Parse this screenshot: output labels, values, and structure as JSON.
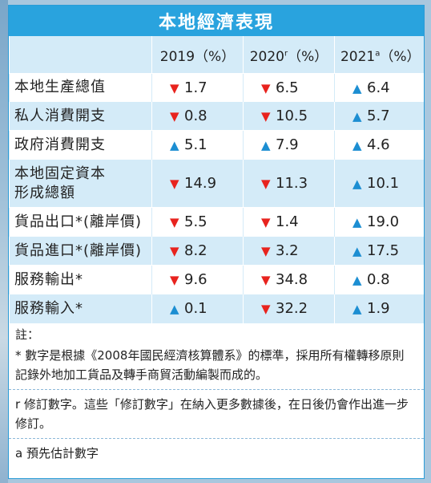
{
  "title": "本地經濟表現",
  "headers": {
    "col0": "",
    "col1": "2019（%）",
    "col2_main": "2020",
    "col2_sup": "r",
    "col2_rest": "（%）",
    "col3_main": "2021",
    "col3_sup": "a",
    "col3_rest": "（%）"
  },
  "rows": [
    {
      "label": "本地生產總值",
      "v": [
        {
          "dir": "down",
          "val": "1.7"
        },
        {
          "dir": "down",
          "val": "6.5"
        },
        {
          "dir": "up",
          "val": "6.4"
        }
      ]
    },
    {
      "label": "私人消費開支",
      "v": [
        {
          "dir": "down",
          "val": "0.8"
        },
        {
          "dir": "down",
          "val": "10.5"
        },
        {
          "dir": "up",
          "val": "5.7"
        }
      ]
    },
    {
      "label": "政府消費開支",
      "v": [
        {
          "dir": "up",
          "val": "5.1"
        },
        {
          "dir": "up",
          "val": "7.9"
        },
        {
          "dir": "up",
          "val": "4.6"
        }
      ]
    },
    {
      "label": "本地固定資本\n形成總額",
      "v": [
        {
          "dir": "down",
          "val": "14.9"
        },
        {
          "dir": "down",
          "val": "11.3"
        },
        {
          "dir": "up",
          "val": "10.1"
        }
      ]
    },
    {
      "label": "貨品出口*(離岸價)",
      "v": [
        {
          "dir": "down",
          "val": "5.5"
        },
        {
          "dir": "down",
          "val": "1.4"
        },
        {
          "dir": "up",
          "val": "19.0"
        }
      ]
    },
    {
      "label": "貨品進口*(離岸價)",
      "v": [
        {
          "dir": "down",
          "val": "8.2"
        },
        {
          "dir": "down",
          "val": "3.2"
        },
        {
          "dir": "up",
          "val": "17.5"
        }
      ]
    },
    {
      "label": "服務輸出*",
      "v": [
        {
          "dir": "down",
          "val": "9.6"
        },
        {
          "dir": "down",
          "val": "34.8"
        },
        {
          "dir": "up",
          "val": "0.8"
        }
      ]
    },
    {
      "label": "服務輸入*",
      "v": [
        {
          "dir": "up",
          "val": "0.1"
        },
        {
          "dir": "down",
          "val": "32.2"
        },
        {
          "dir": "up",
          "val": "1.9"
        }
      ]
    }
  ],
  "arrows": {
    "down": "▼",
    "up": "▲"
  },
  "notes": {
    "heading": "註：",
    "star": "*  數字是根據《2008年國民經濟核算體系》的標準，採用所有權轉移原則記錄外地加工貨品及轉手商貿活動編製而成的。",
    "r": "r  修訂數字。這些「修訂數字」在納入更多數據後，在日後仍會作出進一步修訂。",
    "a": "a  預先估計數字"
  },
  "colors": {
    "header": "#29a3de",
    "stripe": "#d4ebf8",
    "down": "#e8231e",
    "up": "#1c8ed2"
  }
}
